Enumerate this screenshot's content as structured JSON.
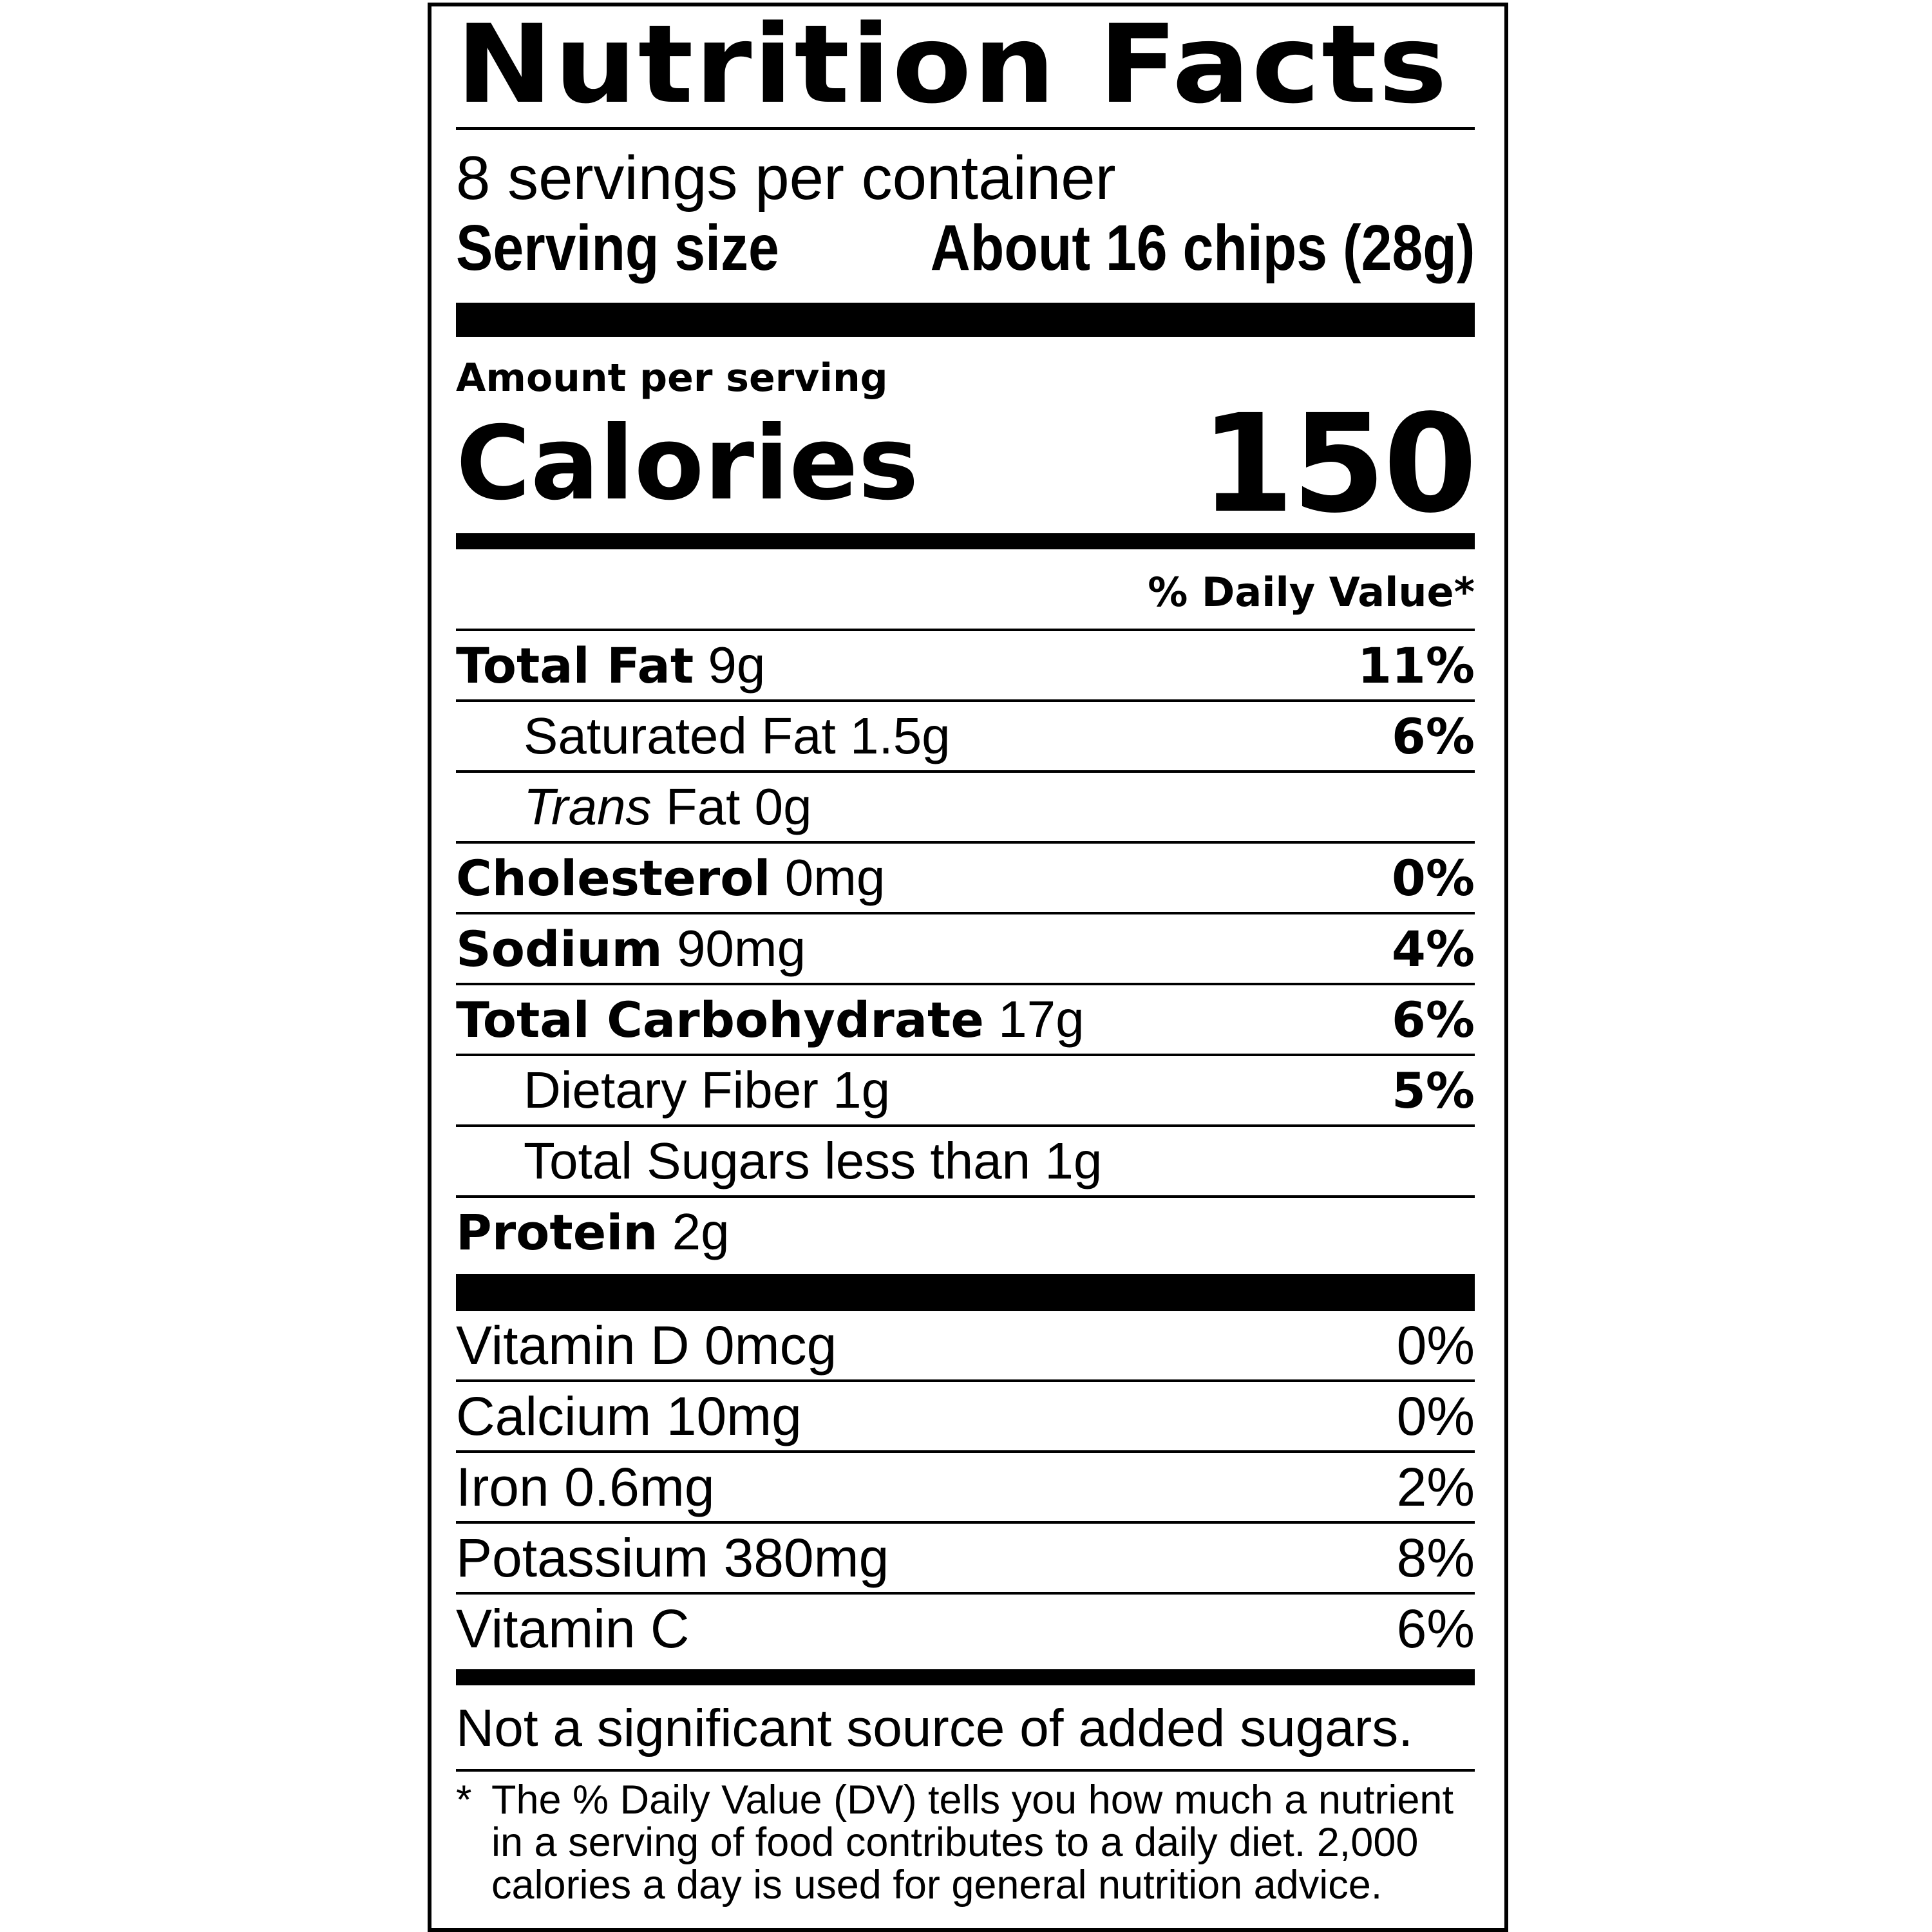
{
  "title": "Nutrition Facts",
  "servings_per_container": "8 servings per container",
  "serving_size_label": "Serving size",
  "serving_size_value": "About 16 chips (28g)",
  "amount_per_serving": "Amount per serving",
  "calories_label": "Calories",
  "calories_value": "150",
  "daily_value_header": "% Daily Value*",
  "nutrients": [
    {
      "name": "Total Fat",
      "amount": "9g",
      "dv": "11%"
    },
    {
      "name": "Saturated Fat",
      "amount": "1.5g",
      "dv": "6%"
    },
    {
      "name": "Trans",
      "name2": "Fat",
      "amount": "0g",
      "dv": ""
    },
    {
      "name": "Cholesterol",
      "amount": "0mg",
      "dv": "0%"
    },
    {
      "name": "Sodium",
      "amount": "90mg",
      "dv": "4%"
    },
    {
      "name": "Total Carbohydrate",
      "amount": "17g",
      "dv": "6%"
    },
    {
      "name": "Dietary Fiber",
      "amount": "1g",
      "dv": "5%"
    },
    {
      "name": "Total Sugars less than",
      "amount": "1g",
      "dv": ""
    },
    {
      "name": "Protein",
      "amount": "2g",
      "dv": ""
    }
  ],
  "vitamins": [
    {
      "name": "Vitamin D 0mcg",
      "dv": "0%"
    },
    {
      "name": "Calcium 10mg",
      "dv": "0%"
    },
    {
      "name": "Iron 0.6mg",
      "dv": "2%"
    },
    {
      "name": "Potassium 380mg",
      "dv": "8%"
    },
    {
      "name": "Vitamin C",
      "dv": "6%"
    }
  ],
  "added_sugars_note": "Not a significant source of added sugars.",
  "footnote_star": "*",
  "footnote": "The % Daily Value (DV) tells you how much a nutrient in a serving of food contributes to a daily diet. 2,000 calories a day is used for general nutrition advice."
}
